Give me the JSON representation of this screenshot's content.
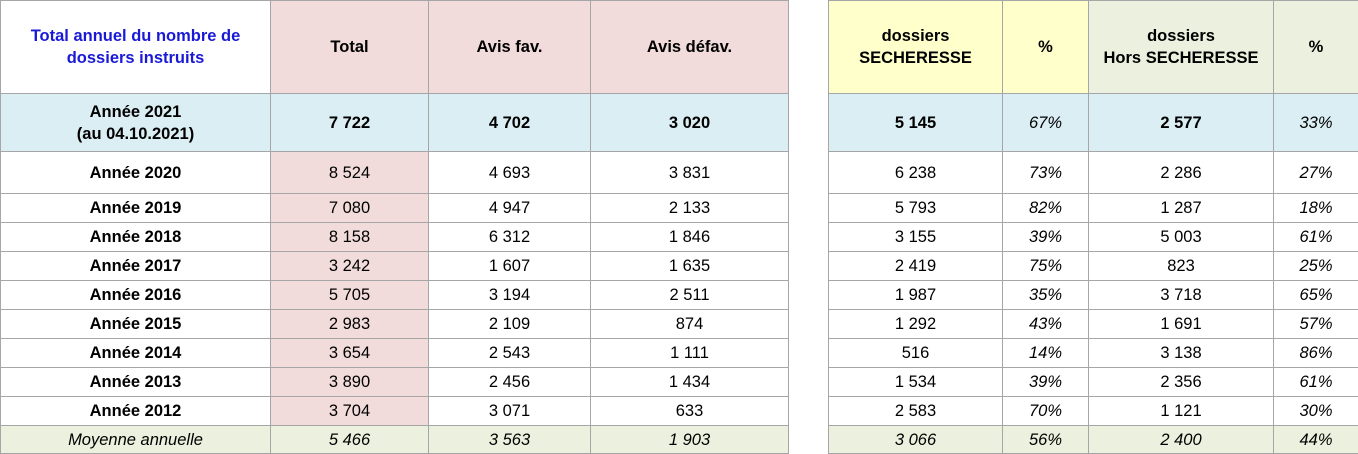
{
  "header": {
    "title": "Total annuel du nombre de dossiers instruits",
    "columns": [
      [
        "Total"
      ],
      [
        "Avis fav."
      ],
      [
        "Avis défav."
      ],
      [
        "dossiers",
        "SECHERESSE"
      ],
      [
        "%"
      ],
      [
        "dossiers",
        "Hors SECHERESSE"
      ],
      [
        "%"
      ]
    ]
  },
  "rows": [
    {
      "label": [
        "Année 2021",
        "(au 04.10.2021)"
      ],
      "cells": [
        "7 722",
        "4 702",
        "3 020",
        "5 145",
        "67%",
        "2 577",
        "33%"
      ]
    },
    {
      "label": [
        "Année 2020"
      ],
      "cells": [
        "8 524",
        "4 693",
        "3 831",
        "6 238",
        "73%",
        "2 286",
        "27%"
      ]
    },
    {
      "label": [
        "Année 2019"
      ],
      "cells": [
        "7 080",
        "4 947",
        "2 133",
        "5 793",
        "82%",
        "1 287",
        "18%"
      ]
    },
    {
      "label": [
        "Année 2018"
      ],
      "cells": [
        "8 158",
        "6 312",
        "1 846",
        "3 155",
        "39%",
        "5 003",
        "61%"
      ]
    },
    {
      "label": [
        "Année 2017"
      ],
      "cells": [
        "3 242",
        "1 607",
        "1 635",
        "2 419",
        "75%",
        "823",
        "25%"
      ]
    },
    {
      "label": [
        "Année 2016"
      ],
      "cells": [
        "5 705",
        "3 194",
        "2 511",
        "1 987",
        "35%",
        "3 718",
        "65%"
      ]
    },
    {
      "label": [
        "Année 2015"
      ],
      "cells": [
        "2 983",
        "2 109",
        "874",
        "1 292",
        "43%",
        "1 691",
        "57%"
      ]
    },
    {
      "label": [
        "Année 2014"
      ],
      "cells": [
        "3 654",
        "2 543",
        "1 111",
        "516",
        "14%",
        "3 138",
        "86%"
      ]
    },
    {
      "label": [
        "Année 2013"
      ],
      "cells": [
        "3 890",
        "2 456",
        "1 434",
        "1 534",
        "39%",
        "2 356",
        "61%"
      ]
    },
    {
      "label": [
        "Année 2012"
      ],
      "cells": [
        "3 704",
        "3 071",
        "633",
        "2 583",
        "70%",
        "1 121",
        "30%"
      ]
    }
  ],
  "footer": {
    "label": "Moyenne annuelle",
    "cells": [
      "5 466",
      "3 563",
      "1 903",
      "3 066",
      "56%",
      "2 400",
      "44%"
    ]
  }
}
